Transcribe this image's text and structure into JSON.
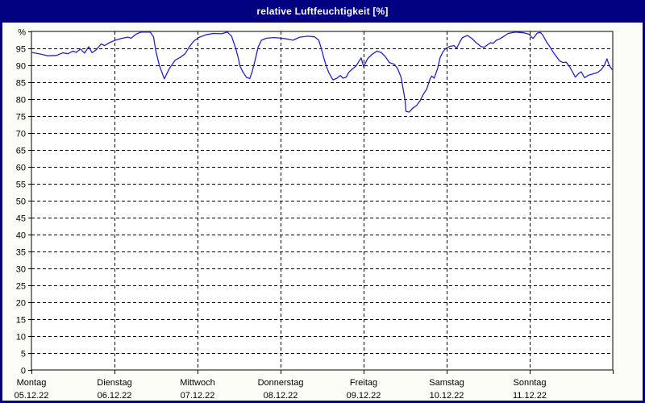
{
  "window": {
    "title": "relative Luftfeuchtigkeit [%]"
  },
  "colors": {
    "frame": "#000080",
    "titlebar_bg": "#000080",
    "title_text": "#ffffff",
    "page_bg": "#fbfdf6",
    "plot_bg": "#ffffff",
    "grid": "#000000",
    "axis": "#000000",
    "line": "#2222c8"
  },
  "chart_data": {
    "type": "line",
    "title": "relative Luftfeuchtigkeit [%]",
    "ylabel": "%",
    "ylim": [
      0,
      100
    ],
    "y_tick_step": 5,
    "y_top_label": "%",
    "grid": "dashed",
    "legend": "none",
    "x_days": [
      {
        "name": "Montag",
        "date": "05.12.22"
      },
      {
        "name": "Dienstag",
        "date": "06.12.22"
      },
      {
        "name": "Mittwoch",
        "date": "07.12.22"
      },
      {
        "name": "Donnerstag",
        "date": "08.12.22"
      },
      {
        "name": "Freitag",
        "date": "09.12.22"
      },
      {
        "name": "Samstag",
        "date": "10.12.22"
      },
      {
        "name": "Sonntag",
        "date": "11.12.22"
      }
    ],
    "series": [
      {
        "name": "relative Luftfeuchtigkeit",
        "unit": "%",
        "points": [
          [
            0.0,
            93.8
          ],
          [
            0.11,
            93.3
          ],
          [
            0.2,
            92.8
          ],
          [
            0.3,
            92.9
          ],
          [
            0.38,
            93.7
          ],
          [
            0.44,
            93.4
          ],
          [
            0.5,
            94.2
          ],
          [
            0.54,
            93.8
          ],
          [
            0.59,
            94.8
          ],
          [
            0.64,
            93.6
          ],
          [
            0.69,
            95.5
          ],
          [
            0.73,
            93.7
          ],
          [
            0.78,
            94.6
          ],
          [
            0.84,
            96.3
          ],
          [
            0.88,
            95.8
          ],
          [
            0.94,
            96.7
          ],
          [
            1.0,
            97.3
          ],
          [
            1.08,
            97.9
          ],
          [
            1.16,
            98.3
          ],
          [
            1.2,
            98.0
          ],
          [
            1.26,
            99.2
          ],
          [
            1.32,
            99.8
          ],
          [
            1.43,
            99.8
          ],
          [
            1.47,
            98.4
          ],
          [
            1.5,
            94.0
          ],
          [
            1.54,
            90.0
          ],
          [
            1.6,
            86.0
          ],
          [
            1.66,
            89.0
          ],
          [
            1.73,
            91.5
          ],
          [
            1.79,
            92.3
          ],
          [
            1.85,
            93.4
          ],
          [
            1.9,
            95.4
          ],
          [
            1.95,
            97.0
          ],
          [
            2.01,
            98.2
          ],
          [
            2.1,
            99.0
          ],
          [
            2.19,
            99.4
          ],
          [
            2.29,
            99.3
          ],
          [
            2.36,
            99.8
          ],
          [
            2.41,
            98.6
          ],
          [
            2.46,
            95.0
          ],
          [
            2.49,
            92.2
          ],
          [
            2.51,
            89.8
          ],
          [
            2.55,
            87.9
          ],
          [
            2.59,
            86.4
          ],
          [
            2.63,
            86.1
          ],
          [
            2.66,
            88.3
          ],
          [
            2.7,
            92.2
          ],
          [
            2.73,
            95.4
          ],
          [
            2.77,
            97.4
          ],
          [
            2.83,
            98.0
          ],
          [
            2.92,
            98.2
          ],
          [
            3.01,
            98.0
          ],
          [
            3.07,
            97.8
          ],
          [
            3.15,
            97.4
          ],
          [
            3.23,
            98.3
          ],
          [
            3.33,
            98.6
          ],
          [
            3.41,
            98.4
          ],
          [
            3.46,
            97.4
          ],
          [
            3.49,
            95.0
          ],
          [
            3.52,
            92.2
          ],
          [
            3.55,
            89.8
          ],
          [
            3.58,
            87.9
          ],
          [
            3.63,
            85.7
          ],
          [
            3.68,
            86.2
          ],
          [
            3.72,
            87.0
          ],
          [
            3.75,
            86.2
          ],
          [
            3.79,
            86.5
          ],
          [
            3.82,
            87.9
          ],
          [
            3.86,
            88.8
          ],
          [
            3.91,
            89.8
          ],
          [
            3.94,
            91.0
          ],
          [
            3.97,
            92.2
          ],
          [
            4.0,
            89.6
          ],
          [
            4.05,
            92.0
          ],
          [
            4.1,
            93.2
          ],
          [
            4.16,
            94.2
          ],
          [
            4.21,
            93.8
          ],
          [
            4.26,
            92.6
          ],
          [
            4.31,
            90.8
          ],
          [
            4.37,
            90.3
          ],
          [
            4.41,
            89.0
          ],
          [
            4.45,
            86.5
          ],
          [
            4.48,
            82.5
          ],
          [
            4.5,
            79.5
          ],
          [
            4.51,
            76.4
          ],
          [
            4.55,
            76.2
          ],
          [
            4.59,
            77.3
          ],
          [
            4.64,
            78.2
          ],
          [
            4.68,
            79.5
          ],
          [
            4.72,
            81.5
          ],
          [
            4.76,
            83.0
          ],
          [
            4.8,
            86.0
          ],
          [
            4.82,
            86.8
          ],
          [
            4.85,
            86.2
          ],
          [
            4.89,
            89.0
          ],
          [
            4.92,
            92.2
          ],
          [
            4.95,
            93.8
          ],
          [
            4.99,
            95.0
          ],
          [
            5.04,
            95.6
          ],
          [
            5.09,
            95.8
          ],
          [
            5.12,
            95.0
          ],
          [
            5.16,
            97.0
          ],
          [
            5.19,
            98.2
          ],
          [
            5.25,
            98.8
          ],
          [
            5.3,
            98.0
          ],
          [
            5.35,
            96.8
          ],
          [
            5.41,
            95.6
          ],
          [
            5.45,
            95.3
          ],
          [
            5.5,
            96.2
          ],
          [
            5.53,
            96.7
          ],
          [
            5.56,
            96.5
          ],
          [
            5.6,
            97.4
          ],
          [
            5.64,
            97.8
          ],
          [
            5.69,
            98.6
          ],
          [
            5.74,
            99.4
          ],
          [
            5.83,
            99.8
          ],
          [
            5.93,
            99.6
          ],
          [
            5.99,
            99.2
          ],
          [
            6.04,
            97.9
          ],
          [
            6.09,
            99.5
          ],
          [
            6.13,
            99.7
          ],
          [
            6.16,
            98.8
          ],
          [
            6.2,
            97.0
          ],
          [
            6.24,
            95.6
          ],
          [
            6.28,
            94.0
          ],
          [
            6.32,
            92.6
          ],
          [
            6.36,
            91.3
          ],
          [
            6.4,
            90.8
          ],
          [
            6.44,
            90.9
          ],
          [
            6.48,
            89.6
          ],
          [
            6.51,
            88.3
          ],
          [
            6.55,
            86.5
          ],
          [
            6.59,
            87.6
          ],
          [
            6.62,
            88.1
          ],
          [
            6.66,
            86.3
          ],
          [
            6.71,
            87.1
          ],
          [
            6.77,
            87.5
          ],
          [
            6.82,
            87.9
          ],
          [
            6.86,
            88.7
          ],
          [
            6.9,
            90.0
          ],
          [
            6.93,
            91.9
          ],
          [
            6.96,
            89.8
          ],
          [
            6.99,
            88.8
          ]
        ]
      }
    ]
  }
}
